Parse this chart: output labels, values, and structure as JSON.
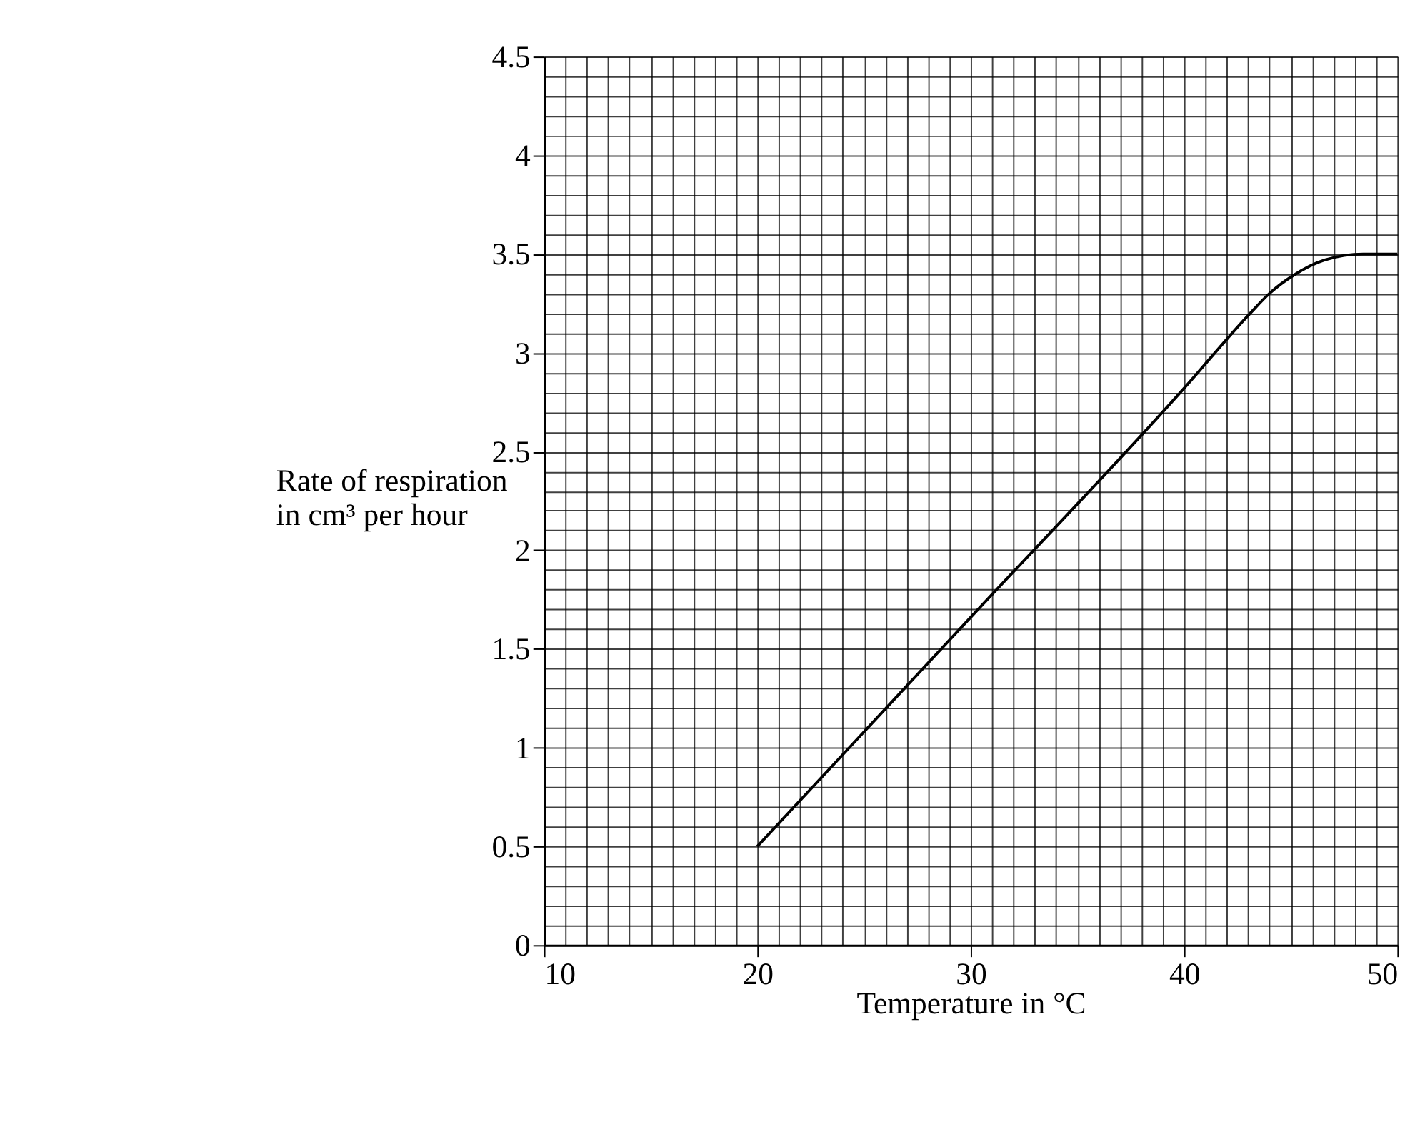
{
  "chart_data": {
    "type": "line",
    "xlabel": "Temperature in °C",
    "ylabel": "Rate of respiration in cm³ per hour",
    "x": [
      20,
      30,
      40,
      43.1,
      44,
      45.1,
      46.6,
      48.4,
      50
    ],
    "series": [
      {
        "color": "#000000",
        "values": [
          0.5,
          1.66,
          2.82,
          3.2,
          3.3,
          3.39,
          3.47,
          3.5,
          3.5
        ]
      }
    ],
    "xlim": [
      10,
      50
    ],
    "ylim": [
      0,
      4.5
    ],
    "xticks": [
      10,
      {
        "value": 11,
        "label": null
      },
      {
        "value": 12,
        "label": null
      },
      {
        "value": 13,
        "label": null
      },
      {
        "value": 14,
        "label": null
      },
      {
        "value": 15,
        "label": null
      },
      {
        "value": 16,
        "label": null
      },
      {
        "value": 17,
        "label": null
      },
      {
        "value": 18,
        "label": null
      },
      {
        "value": 19,
        "label": null
      },
      20,
      {
        "value": 21,
        "label": null
      },
      {
        "value": 22,
        "label": null
      },
      {
        "value": 23,
        "label": null
      },
      {
        "value": 24,
        "label": null
      },
      {
        "value": 25,
        "label": null
      },
      {
        "value": 26,
        "label": null
      },
      {
        "value": 27,
        "label": null
      },
      {
        "value": 28,
        "label": null
      },
      {
        "value": 29,
        "label": null
      },
      30,
      {
        "value": 31,
        "label": null
      },
      {
        "value": 32,
        "label": null
      },
      {
        "value": 33,
        "label": null
      },
      {
        "value": 34,
        "label": null
      },
      {
        "value": 35,
        "label": null
      },
      {
        "value": 36,
        "label": null
      },
      {
        "value": 37,
        "label": null
      },
      {
        "value": 38,
        "label": null
      },
      {
        "value": 39,
        "label": null
      },
      40,
      {
        "value": 41,
        "label": null
      },
      {
        "value": 42,
        "label": null
      },
      {
        "value": 43,
        "label": null
      },
      {
        "value": 44,
        "label": null
      },
      {
        "value": 45,
        "label": null
      },
      {
        "value": 46,
        "label": null
      },
      {
        "value": 47,
        "label": null
      },
      {
        "value": 48,
        "label": null
      },
      {
        "value": 49,
        "label": null
      },
      50
    ],
    "yticks": [
      0,
      {
        "value": 0.1,
        "label": null
      },
      {
        "value": 0.2,
        "label": null
      },
      {
        "value": 0.3,
        "label": null
      },
      {
        "value": 0.4,
        "label": null
      },
      0.5,
      {
        "value": 0.6,
        "label": null
      },
      {
        "value": 0.7,
        "label": null
      },
      {
        "value": 0.8,
        "label": null
      },
      {
        "value": 0.9,
        "label": null
      },
      1,
      {
        "value": 1.1,
        "label": null
      },
      {
        "value": 1.2,
        "label": null
      },
      {
        "value": 1.3,
        "label": null
      },
      {
        "value": 1.4,
        "label": null
      },
      1.5,
      {
        "value": 1.6,
        "label": null
      },
      {
        "value": 1.7,
        "label": null
      },
      {
        "value": 1.8,
        "label": null
      },
      {
        "value": 1.9,
        "label": null
      },
      2,
      {
        "value": 2.1,
        "label": null
      },
      {
        "value": 2.2,
        "label": null
      },
      {
        "value": 2.3,
        "label": null
      },
      {
        "value": 2.4,
        "label": null
      },
      2.5,
      {
        "value": 2.6,
        "label": null
      },
      {
        "value": 2.7,
        "label": null
      },
      {
        "value": 2.8,
        "label": null
      },
      {
        "value": 2.9,
        "label": null
      },
      3,
      {
        "value": 3.1,
        "label": null
      },
      {
        "value": 3.2,
        "label": null
      },
      {
        "value": 3.3,
        "label": null
      },
      {
        "value": 3.4,
        "label": null
      },
      3.5,
      {
        "value": 3.6,
        "label": null
      },
      {
        "value": 3.7,
        "label": null
      },
      {
        "value": 3.8,
        "label": null
      },
      {
        "value": 3.9,
        "label": null
      },
      4,
      {
        "value": 4.1,
        "label": null
      },
      {
        "value": 4.2,
        "label": null
      },
      {
        "value": 4.3,
        "label": null
      },
      {
        "value": 4.4,
        "label": null
      },
      4.5
    ],
    "grid": true,
    "line_style": "solid",
    "marker": "none"
  }
}
